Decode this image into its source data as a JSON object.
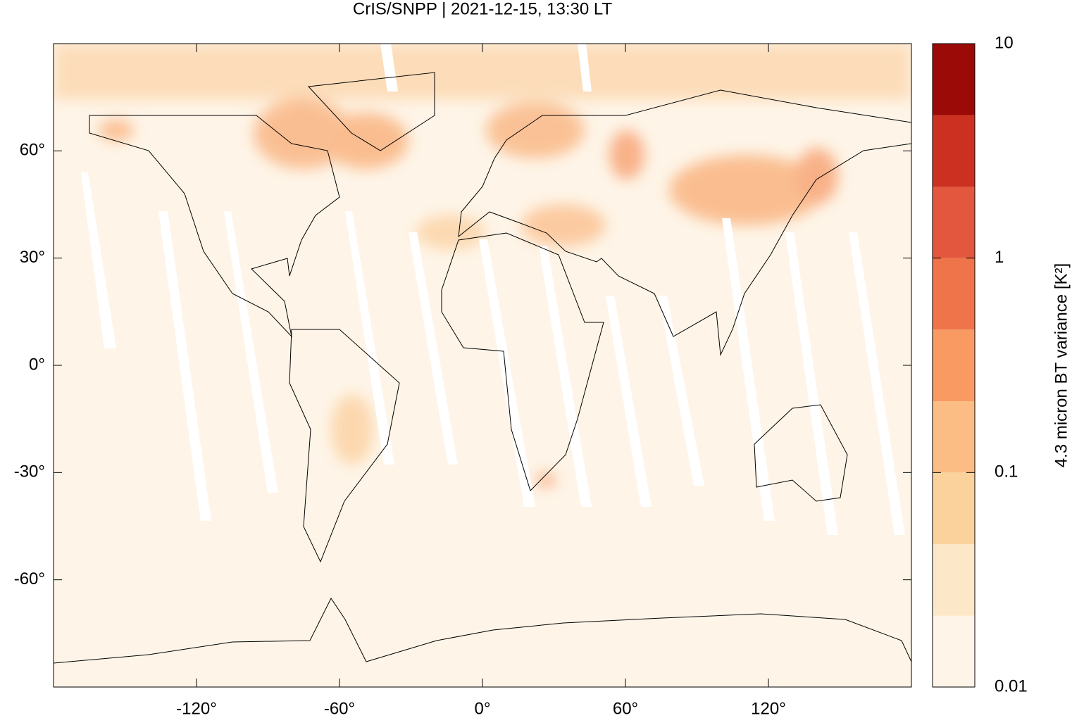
{
  "title": "CrIS/SNPP | 2021-12-15, 13:30 LT",
  "map": {
    "xlim": [
      -180,
      180
    ],
    "ylim": [
      -90,
      90
    ],
    "xticks": [
      {
        "value": -120,
        "label": "-120°"
      },
      {
        "value": -60,
        "label": "-60°"
      },
      {
        "value": 0,
        "label": "0°"
      },
      {
        "value": 60,
        "label": "60°"
      },
      {
        "value": 120,
        "label": "120°"
      }
    ],
    "yticks": [
      {
        "value": -60,
        "label": "-60°"
      },
      {
        "value": -30,
        "label": "-30°"
      },
      {
        "value": 0,
        "label": "0°"
      },
      {
        "value": 30,
        "label": "30°"
      },
      {
        "value": 60,
        "label": "60°"
      }
    ]
  },
  "colorbar": {
    "label": "4.3 micron BT variance [K²]",
    "scale": "log",
    "lim": [
      0.01,
      10
    ],
    "ticks": [
      0.01,
      0.1,
      1,
      10
    ],
    "levels": [
      0.01,
      0.0215,
      0.0464,
      0.1,
      0.215,
      0.464,
      1,
      2.15,
      4.64,
      10
    ],
    "colors": [
      "#fef5e8",
      "#fce8c8",
      "#fcd29c",
      "#fbbd84",
      "#f89a62",
      "#ef744a",
      "#e2573d",
      "#cc3020",
      "#9b0a06"
    ]
  }
}
